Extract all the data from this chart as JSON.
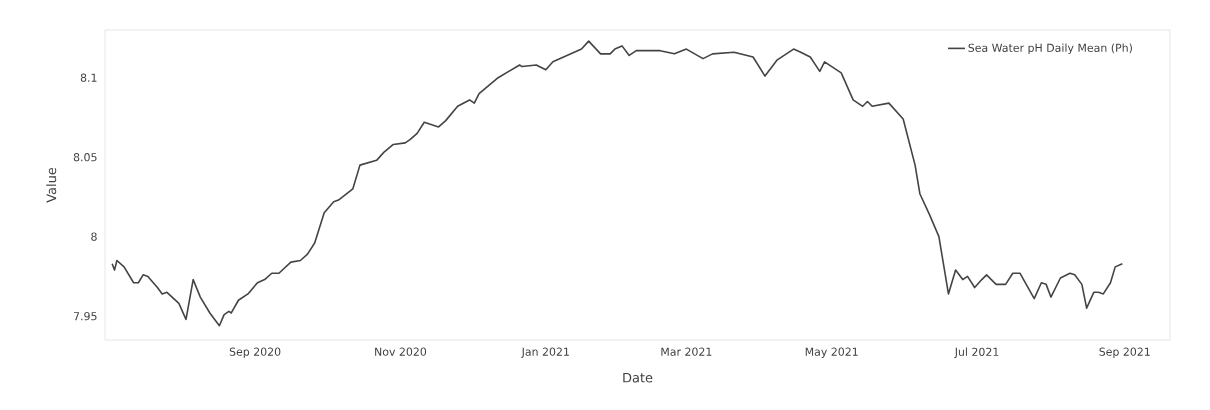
{
  "chart_data": {
    "type": "line",
    "xlabel": "Date",
    "ylabel": "Value",
    "x": [
      "2020-07-03",
      "2020-07-04",
      "2020-07-05",
      "2020-07-08",
      "2020-07-12",
      "2020-07-14",
      "2020-07-16",
      "2020-07-18",
      "2020-07-22",
      "2020-07-24",
      "2020-07-26",
      "2020-07-31",
      "2020-08-03",
      "2020-08-06",
      "2020-08-09",
      "2020-08-13",
      "2020-08-17",
      "2020-08-19",
      "2020-08-21",
      "2020-08-22",
      "2020-08-25",
      "2020-08-29",
      "2020-09-02",
      "2020-09-05",
      "2020-09-08",
      "2020-09-11",
      "2020-09-16",
      "2020-09-20",
      "2020-09-23",
      "2020-09-26",
      "2020-09-30",
      "2020-10-04",
      "2020-10-06",
      "2020-10-12",
      "2020-10-15",
      "2020-10-22",
      "2020-10-25",
      "2020-10-29",
      "2020-11-03",
      "2020-11-05",
      "2020-11-08",
      "2020-11-11",
      "2020-11-17",
      "2020-11-20",
      "2020-11-25",
      "2020-11-30",
      "2020-12-02",
      "2020-12-04",
      "2020-12-12",
      "2020-12-21",
      "2020-12-22",
      "2020-12-28",
      "2021-01-01",
      "2021-01-04",
      "2021-01-16",
      "2021-01-19",
      "2021-01-24",
      "2021-01-28",
      "2021-01-30",
      "2021-02-02",
      "2021-02-05",
      "2021-02-08",
      "2021-02-18",
      "2021-02-24",
      "2021-03-01",
      "2021-03-08",
      "2021-03-12",
      "2021-03-21",
      "2021-03-29",
      "2021-04-03",
      "2021-04-08",
      "2021-04-11",
      "2021-04-15",
      "2021-04-18",
      "2021-04-22",
      "2021-04-26",
      "2021-04-28",
      "2021-05-05",
      "2021-05-10",
      "2021-05-14",
      "2021-05-16",
      "2021-05-18",
      "2021-05-25",
      "2021-05-31",
      "2021-06-05",
      "2021-06-07",
      "2021-06-11",
      "2021-06-15",
      "2021-06-19",
      "2021-06-22",
      "2021-06-25",
      "2021-06-27",
      "2021-06-30",
      "2021-07-03",
      "2021-07-05",
      "2021-07-09",
      "2021-07-13",
      "2021-07-16",
      "2021-07-19",
      "2021-07-25",
      "2021-07-28",
      "2021-07-30",
      "2021-08-01",
      "2021-08-05",
      "2021-08-09",
      "2021-08-11",
      "2021-08-14",
      "2021-08-16",
      "2021-08-19",
      "2021-08-21",
      "2021-08-23",
      "2021-08-26",
      "2021-08-28",
      "2021-08-31"
    ],
    "series": [
      {
        "name": "Sea Water pH Daily Mean (Ph)",
        "color": "#444444",
        "values": [
          7.983,
          7.979,
          7.985,
          7.981,
          7.971,
          7.971,
          7.976,
          7.975,
          7.968,
          7.964,
          7.965,
          7.958,
          7.948,
          7.973,
          7.962,
          7.952,
          7.944,
          7.951,
          7.953,
          7.952,
          7.96,
          7.964,
          7.971,
          7.973,
          7.977,
          7.977,
          7.984,
          7.985,
          7.989,
          7.996,
          8.015,
          8.022,
          8.023,
          8.03,
          8.045,
          8.048,
          8.053,
          8.058,
          8.059,
          8.061,
          8.065,
          8.072,
          8.069,
          8.073,
          8.082,
          8.086,
          8.084,
          8.09,
          8.1,
          8.108,
          8.107,
          8.108,
          8.105,
          8.11,
          8.118,
          8.123,
          8.115,
          8.115,
          8.118,
          8.12,
          8.114,
          8.117,
          8.117,
          8.115,
          8.118,
          8.112,
          8.115,
          8.116,
          8.113,
          8.101,
          8.111,
          8.114,
          8.118,
          8.116,
          8.113,
          8.104,
          8.11,
          8.103,
          8.086,
          8.082,
          8.085,
          8.082,
          8.084,
          8.074,
          8.045,
          8.027,
          8.014,
          8.0,
          7.964,
          7.979,
          7.973,
          7.975,
          7.968,
          7.973,
          7.976,
          7.97,
          7.97,
          7.977,
          7.977,
          7.961,
          7.971,
          7.97,
          7.962,
          7.974,
          7.977,
          7.976,
          7.97,
          7.955,
          7.965,
          7.965,
          7.964,
          7.971,
          7.981,
          7.983
        ]
      }
    ],
    "xticks": [
      {
        "value": "2020-09-01",
        "label": "Sep 2020"
      },
      {
        "value": "2020-11-01",
        "label": "Nov 2020"
      },
      {
        "value": "2021-01-01",
        "label": "Jan 2021"
      },
      {
        "value": "2021-03-01",
        "label": "Mar 2021"
      },
      {
        "value": "2021-05-01",
        "label": "May 2021"
      },
      {
        "value": "2021-07-01",
        "label": "Jul 2021"
      },
      {
        "value": "2021-09-01",
        "label": "Sep 2021"
      }
    ],
    "xlim": [
      "2020-06-30",
      "2021-09-20"
    ],
    "ylim": [
      7.935,
      8.13
    ],
    "yticks": [
      7.95,
      8,
      8.05,
      8.1
    ],
    "legend": "top right",
    "line_style": "solid"
  }
}
